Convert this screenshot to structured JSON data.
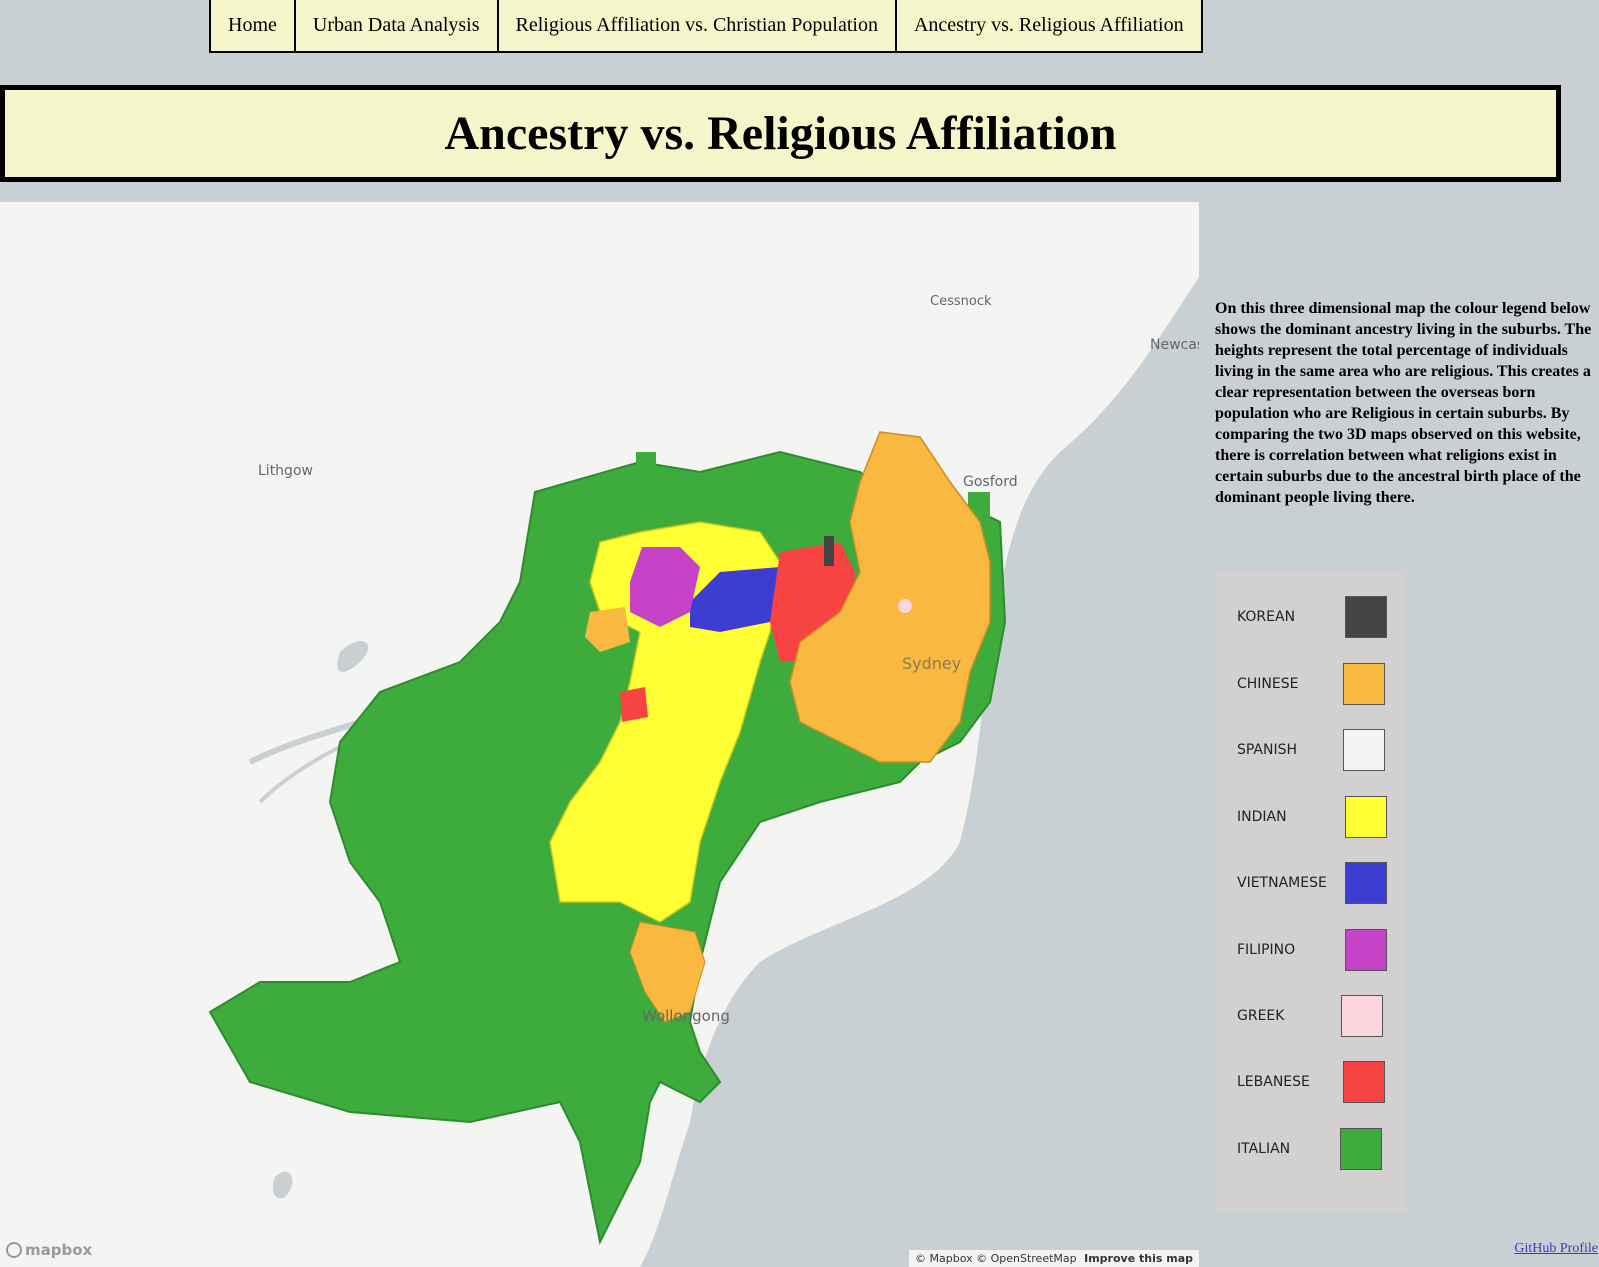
{
  "nav": {
    "items": [
      {
        "label": "Home"
      },
      {
        "label": "Urban Data Analysis"
      },
      {
        "label": "Religious Affiliation vs. Christian Population"
      },
      {
        "label": "Ancestry vs. Religious Affiliation"
      }
    ]
  },
  "page_title": "Ancestry vs. Religious Affiliation",
  "map": {
    "place_labels": {
      "cessnock": "Cessnock",
      "newcastle": "Newcas",
      "lithgow": "Lithgow",
      "gosford": "Gosford",
      "sydney": "Sydney",
      "wollongong": "Wollongong"
    },
    "attribution": {
      "mapbox": "© Mapbox",
      "osm": "© OpenStreetMap",
      "improve": "Improve this map"
    },
    "logo": "mapbox"
  },
  "description": "On this three dimensional map the colour legend below shows the dominant ancestry living in the suburbs. The heights represent the total percentage of individuals living in the same area who are religious. This creates a clear representation between the overseas born population who are Religious in certain suburbs. By comparing the two 3D maps observed on this website, there is correlation between what religions exist in certain suburbs due to the ancestral birth place of the dominant people living there.",
  "legend": {
    "items": [
      {
        "label": "KOREAN",
        "color": "#444444"
      },
      {
        "label": "CHINESE",
        "color": "#f9b83f"
      },
      {
        "label": "SPANISH",
        "color": "#f4f4f4"
      },
      {
        "label": "INDIAN",
        "color": "#ffff33"
      },
      {
        "label": "VIETNAMESE",
        "color": "#3d3dd1"
      },
      {
        "label": "FILIPINO",
        "color": "#c642c6"
      },
      {
        "label": "GREEK",
        "color": "#fcd5dd"
      },
      {
        "label": "LEBANESE",
        "color": "#f84343"
      },
      {
        "label": "ITALIAN",
        "color": "#3dac3d"
      }
    ]
  },
  "footer": {
    "github": "GitHub Profile"
  }
}
